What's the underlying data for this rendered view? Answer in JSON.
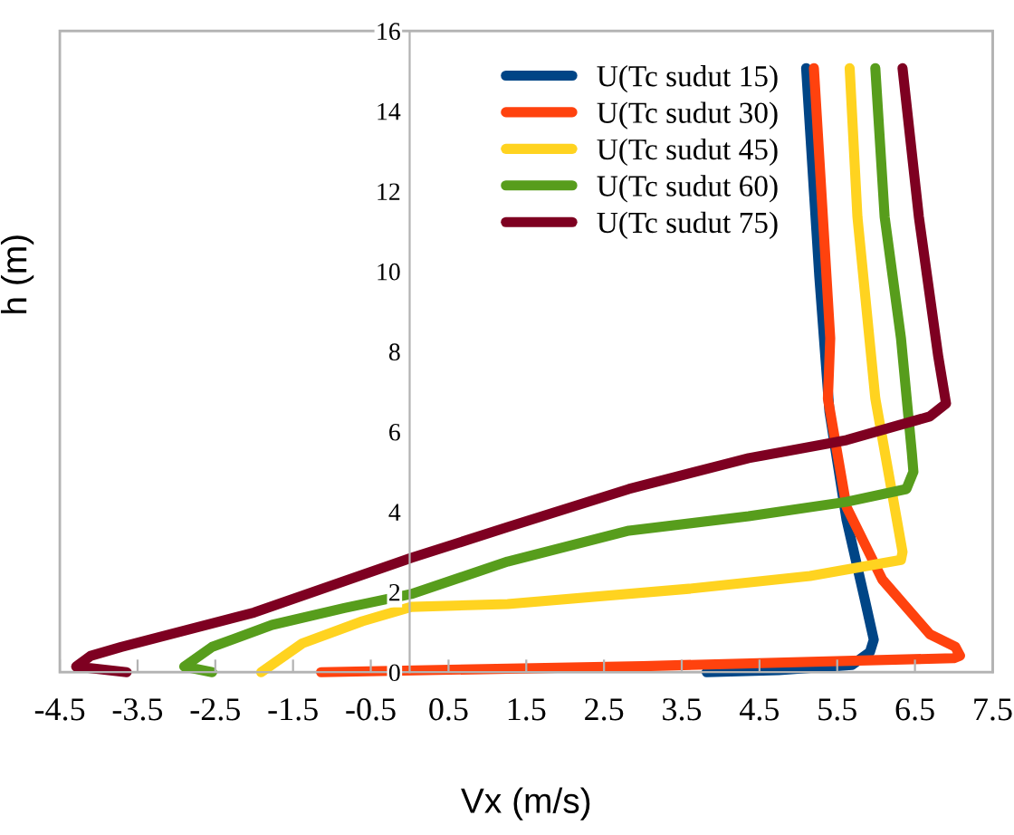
{
  "chart_data": {
    "type": "line",
    "xlabel": "Vx (m/s)",
    "ylabel": "h (m)",
    "xlim": [
      -4.5,
      7.5
    ],
    "xticks": [
      -4.5,
      -3.5,
      -2.5,
      -1.5,
      -0.5,
      0.5,
      1.5,
      2.5,
      3.5,
      4.5,
      5.5,
      6.5,
      7.5
    ],
    "ylim": [
      0,
      16
    ],
    "yticks": [
      0,
      2,
      4,
      6,
      8,
      10,
      12,
      14,
      16
    ],
    "grid": false,
    "legend": "top right",
    "marker": "none",
    "line_style": "solid",
    "series": [
      {
        "name": "U(Tc sudut 15)",
        "color": "#004586",
        "x": [
          3.82,
          4.75,
          5.69,
          5.92,
          5.97,
          5.85,
          5.62,
          5.4,
          5.27,
          5.1
        ],
        "values": [
          0,
          0.05,
          0.18,
          0.5,
          0.81,
          1.85,
          3.8,
          6.5,
          9.86,
          15.07
        ]
      },
      {
        "name": "U(Tc sudut 30)",
        "color": "#ff420e",
        "x": [
          -1.14,
          3.0,
          7.0,
          7.08,
          7.02,
          6.69,
          6.08,
          5.62,
          5.38,
          5.41,
          5.2
        ],
        "values": [
          0,
          0.15,
          0.35,
          0.41,
          0.63,
          0.95,
          2.31,
          4.12,
          6.83,
          8.33,
          15.07
        ]
      },
      {
        "name": "U(Tc sudut 45)",
        "color": "#ffd320",
        "x": [
          -1.91,
          -1.38,
          -0.61,
          0.02,
          1.26,
          3.59,
          5.15,
          6.32,
          6.34,
          5.99,
          5.76,
          5.66
        ],
        "values": [
          0,
          0.72,
          1.27,
          1.63,
          1.7,
          2.08,
          2.4,
          2.8,
          3.0,
          6.83,
          11.36,
          15.07
        ]
      },
      {
        "name": "U(Tc sudut 60)",
        "color": "#579d1c",
        "x": [
          -2.54,
          -2.9,
          -2.87,
          -2.54,
          -1.77,
          -0.84,
          0.02,
          1.26,
          2.82,
          4.36,
          5.62,
          6.39,
          6.48,
          6.46,
          6.32,
          6.11,
          5.99
        ],
        "values": [
          0,
          0.14,
          0.18,
          0.63,
          1.18,
          1.6,
          1.95,
          2.76,
          3.53,
          3.89,
          4.25,
          4.57,
          5.0,
          5.47,
          8.33,
          11.36,
          15.07
        ]
      },
      {
        "name": "U(Tc sudut 75)",
        "color": "#7e0021",
        "x": [
          -3.64,
          -4.29,
          -4.1,
          -3.71,
          -2.0,
          0.02,
          1.26,
          2.82,
          4.36,
          5.62,
          6.69,
          6.9,
          6.8,
          6.55,
          6.34
        ],
        "values": [
          0,
          0.14,
          0.41,
          0.63,
          1.49,
          2.85,
          3.62,
          4.57,
          5.34,
          5.79,
          6.38,
          6.7,
          7.87,
          11.36,
          15.07
        ]
      }
    ]
  }
}
